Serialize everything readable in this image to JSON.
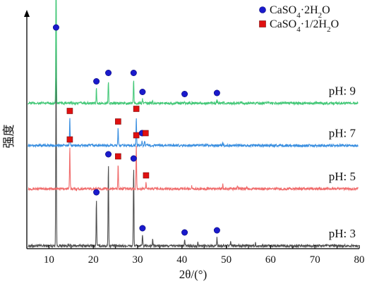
{
  "chart_data": {
    "type": "line",
    "title": "",
    "xlabel": "2θ/(°)",
    "ylabel": "强度",
    "xlim": [
      5,
      80
    ],
    "xticks": [
      10,
      20,
      30,
      40,
      50,
      60,
      70,
      80
    ],
    "y_ticks_shown": false,
    "grid": false,
    "legend": {
      "placement": "top-right",
      "entries": [
        {
          "name": "CaSO4·2H2O",
          "display": [
            "CaSO",
            "4",
            "·2H",
            "2",
            "O"
          ],
          "marker": "circle",
          "color": "#1a1acc"
        },
        {
          "name": "CaSO4·1/2H2O",
          "display": [
            "CaSO",
            "4",
            "·1/2H",
            "2",
            "O"
          ],
          "marker": "square",
          "color": "#e01010"
        }
      ]
    },
    "series": [
      {
        "name": "pH: 3",
        "color": "#4d4d4d",
        "baseline": 0.0,
        "peaks": [
          {
            "x": 11.6,
            "h": 1.0
          },
          {
            "x": 20.7,
            "h": 0.22
          },
          {
            "x": 23.4,
            "h": 0.4
          },
          {
            "x": 29.1,
            "h": 0.38
          },
          {
            "x": 31.1,
            "h": 0.05
          },
          {
            "x": 33.4,
            "h": 0.03
          },
          {
            "x": 40.6,
            "h": 0.03
          },
          {
            "x": 43.6,
            "h": 0.02
          },
          {
            "x": 47.9,
            "h": 0.04
          },
          {
            "x": 51.0,
            "h": 0.02
          },
          {
            "x": 56.6,
            "h": 0.015
          }
        ],
        "markers": [
          {
            "x": 11.6,
            "type": "circle"
          },
          {
            "x": 20.7,
            "type": "circle"
          },
          {
            "x": 23.4,
            "type": "circle"
          },
          {
            "x": 29.1,
            "type": "circle"
          },
          {
            "x": 31.1,
            "type": "circle"
          },
          {
            "x": 40.6,
            "type": "circle"
          },
          {
            "x": 47.9,
            "type": "circle"
          }
        ]
      },
      {
        "name": "pH: 5",
        "color": "#f06b6b",
        "baseline": 0.27,
        "peaks": [
          {
            "x": 14.7,
            "h": 0.2
          },
          {
            "x": 25.6,
            "h": 0.12
          },
          {
            "x": 29.7,
            "h": 0.22
          },
          {
            "x": 31.9,
            "h": 0.03
          },
          {
            "x": 42.2,
            "h": 0.015
          },
          {
            "x": 49.2,
            "h": 0.02
          },
          {
            "x": 52.5,
            "h": 0.015
          },
          {
            "x": 54.6,
            "h": 0.012
          }
        ],
        "markers": [
          {
            "x": 14.7,
            "type": "square"
          },
          {
            "x": 25.6,
            "type": "square"
          },
          {
            "x": 29.7,
            "type": "square"
          },
          {
            "x": 31.9,
            "type": "square"
          }
        ]
      },
      {
        "name": "pH: 7",
        "color": "#3a8fe0",
        "baseline": 0.475,
        "peaks": [
          {
            "x": 14.7,
            "h": 0.13
          },
          {
            "x": 25.6,
            "h": 0.08
          },
          {
            "x": 29.7,
            "h": 0.14
          },
          {
            "x": 31.0,
            "h": 0.025
          },
          {
            "x": 31.6,
            "h": 0.025
          },
          {
            "x": 49.2,
            "h": 0.012
          }
        ],
        "markers": [
          {
            "x": 14.7,
            "type": "square"
          },
          {
            "x": 25.6,
            "type": "square"
          },
          {
            "x": 29.7,
            "type": "square"
          },
          {
            "x": 31.0,
            "type": "circle"
          },
          {
            "x": 31.8,
            "type": "square"
          }
        ]
      },
      {
        "name": "pH: 9",
        "color": "#44c878",
        "baseline": 0.675,
        "peaks": [
          {
            "x": 11.6,
            "h": 0.71
          },
          {
            "x": 20.7,
            "h": 0.07
          },
          {
            "x": 23.4,
            "h": 0.11
          },
          {
            "x": 29.1,
            "h": 0.11
          },
          {
            "x": 31.1,
            "h": 0.02
          },
          {
            "x": 33.4,
            "h": 0.01
          },
          {
            "x": 40.6,
            "h": 0.01
          },
          {
            "x": 47.9,
            "h": 0.015
          }
        ],
        "markers": [
          {
            "x": 11.6,
            "type": "circle"
          },
          {
            "x": 20.7,
            "type": "circle"
          },
          {
            "x": 23.4,
            "type": "circle"
          },
          {
            "x": 29.1,
            "type": "circle"
          },
          {
            "x": 31.1,
            "type": "circle"
          },
          {
            "x": 40.6,
            "type": "circle"
          },
          {
            "x": 47.9,
            "type": "circle"
          }
        ]
      }
    ]
  }
}
